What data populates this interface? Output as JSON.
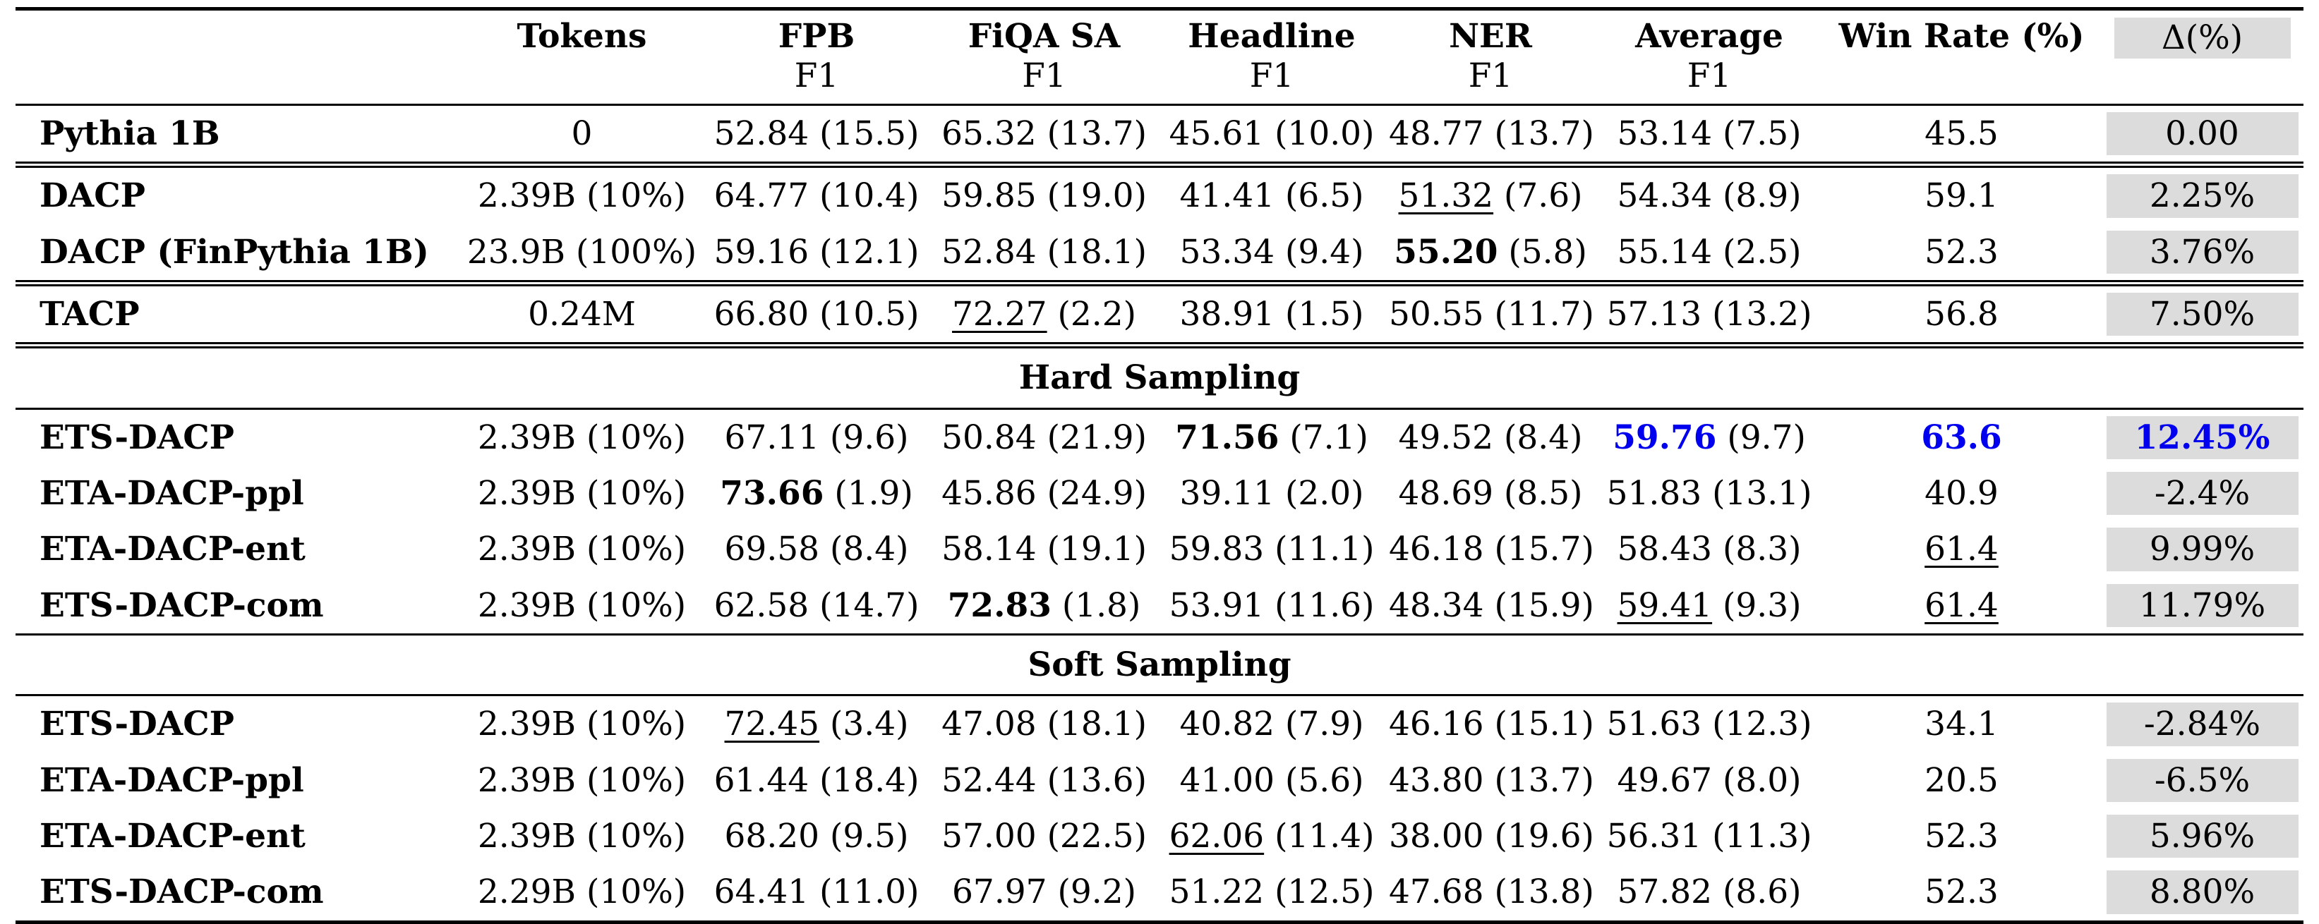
{
  "colors": {
    "accent_blue": "#0000EE",
    "shade_gray": "#DCDCDC",
    "rule_black": "#000000"
  },
  "header": {
    "cols": [
      {
        "key": "model",
        "label": "",
        "sub": ""
      },
      {
        "key": "tokens",
        "label": "Tokens",
        "sub": ""
      },
      {
        "key": "fpb",
        "label": "FPB",
        "sub": "F1"
      },
      {
        "key": "fiqa-sa",
        "label": "FiQA SA",
        "sub": "F1"
      },
      {
        "key": "headline",
        "label": "Headline",
        "sub": "F1"
      },
      {
        "key": "ner",
        "label": "NER",
        "sub": "F1"
      },
      {
        "key": "average",
        "label": "Average",
        "sub": "F1"
      },
      {
        "key": "win-rate",
        "label": "Win Rate (%)",
        "sub": ""
      },
      {
        "key": "delta",
        "label": "Δ(%)",
        "sub": "",
        "shaded": true,
        "plain": true
      }
    ]
  },
  "sections": [
    {
      "label": null,
      "rule_top": "none",
      "rows": [
        {
          "name": "Pythia 1B",
          "cells": [
            {
              "v": "0"
            },
            {
              "v": "52.84",
              "sd": "(15.5)"
            },
            {
              "v": "65.32",
              "sd": "(13.7)"
            },
            {
              "v": "45.61",
              "sd": "(10.0)"
            },
            {
              "v": "48.77",
              "sd": "(13.7)"
            },
            {
              "v": "53.14",
              "sd": "(7.5)"
            },
            {
              "v": "45.5"
            },
            {
              "v": "0.00"
            }
          ]
        }
      ]
    },
    {
      "label": null,
      "rule_top": "double",
      "rows": [
        {
          "name": "DACP",
          "cells": [
            {
              "v": "2.39B (10%)"
            },
            {
              "v": "64.77",
              "sd": "(10.4)"
            },
            {
              "v": "59.85",
              "sd": "(19.0)"
            },
            {
              "v": "41.41",
              "sd": "(6.5)"
            },
            {
              "v": "51.32",
              "sd": "(7.6)",
              "style": "underline"
            },
            {
              "v": "54.34",
              "sd": "(8.9)"
            },
            {
              "v": "59.1"
            },
            {
              "v": "2.25%"
            }
          ]
        },
        {
          "name": "DACP (FinPythia 1B)",
          "cells": [
            {
              "v": "23.9B (100%)"
            },
            {
              "v": "59.16",
              "sd": "(12.1)"
            },
            {
              "v": "52.84",
              "sd": "(18.1)"
            },
            {
              "v": "53.34",
              "sd": "(9.4)"
            },
            {
              "v": "55.20",
              "sd": "(5.8)",
              "style": "bold"
            },
            {
              "v": "55.14",
              "sd": "(2.5)"
            },
            {
              "v": "52.3"
            },
            {
              "v": "3.76%"
            }
          ]
        }
      ]
    },
    {
      "label": null,
      "rule_top": "double",
      "rows": [
        {
          "name": "TACP",
          "cells": [
            {
              "v": "0.24M"
            },
            {
              "v": "66.80",
              "sd": "(10.5)"
            },
            {
              "v": "72.27",
              "sd": "(2.2)",
              "style": "underline"
            },
            {
              "v": "38.91",
              "sd": "(1.5)"
            },
            {
              "v": "50.55",
              "sd": "(11.7)"
            },
            {
              "v": "57.13",
              "sd": "(13.2)"
            },
            {
              "v": "56.8"
            },
            {
              "v": "7.50%"
            }
          ]
        }
      ]
    },
    {
      "label": "Hard Sampling",
      "rule_top": "double",
      "rows": [
        {
          "name": "ETS-DACP",
          "cells": [
            {
              "v": "2.39B (10%)"
            },
            {
              "v": "67.11",
              "sd": "(9.6)"
            },
            {
              "v": "50.84",
              "sd": "(21.9)"
            },
            {
              "v": "71.56",
              "sd": "(7.1)",
              "style": "bold"
            },
            {
              "v": "49.52",
              "sd": "(8.4)"
            },
            {
              "v": "59.76",
              "sd": "(9.7)",
              "style": "blue"
            },
            {
              "v": "63.6",
              "style": "blue"
            },
            {
              "v": "12.45%",
              "style": "blue"
            }
          ]
        },
        {
          "name": "ETA-DACP-ppl",
          "cells": [
            {
              "v": "2.39B (10%)"
            },
            {
              "v": "73.66",
              "sd": "(1.9)",
              "style": "bold"
            },
            {
              "v": "45.86",
              "sd": "(24.9)"
            },
            {
              "v": "39.11",
              "sd": "(2.0)"
            },
            {
              "v": "48.69",
              "sd": "(8.5)"
            },
            {
              "v": "51.83",
              "sd": "(13.1)"
            },
            {
              "v": "40.9"
            },
            {
              "v": "-2.4%"
            }
          ]
        },
        {
          "name": "ETA-DACP-ent",
          "cells": [
            {
              "v": "2.39B (10%)"
            },
            {
              "v": "69.58",
              "sd": "(8.4)"
            },
            {
              "v": "58.14",
              "sd": "(19.1)"
            },
            {
              "v": "59.83",
              "sd": "(11.1)"
            },
            {
              "v": "46.18",
              "sd": "(15.7)"
            },
            {
              "v": "58.43",
              "sd": "(8.3)"
            },
            {
              "v": "61.4",
              "style": "underline"
            },
            {
              "v": "9.99%"
            }
          ]
        },
        {
          "name": "ETS-DACP-com",
          "cells": [
            {
              "v": "2.39B (10%)"
            },
            {
              "v": "62.58",
              "sd": "(14.7)"
            },
            {
              "v": "72.83",
              "sd": "(1.8)",
              "style": "bold"
            },
            {
              "v": "53.91",
              "sd": "(11.6)"
            },
            {
              "v": "48.34",
              "sd": "(15.9)"
            },
            {
              "v": "59.41",
              "sd": "(9.3)",
              "style": "underline"
            },
            {
              "v": "61.4",
              "style": "underline"
            },
            {
              "v": "11.79%"
            }
          ]
        }
      ]
    },
    {
      "label": "Soft Sampling",
      "rule_top": "single",
      "rows": [
        {
          "name": "ETS-DACP",
          "cells": [
            {
              "v": "2.39B (10%)"
            },
            {
              "v": "72.45",
              "sd": "(3.4)",
              "style": "underline"
            },
            {
              "v": "47.08",
              "sd": "(18.1)"
            },
            {
              "v": "40.82",
              "sd": "(7.9)"
            },
            {
              "v": "46.16",
              "sd": "(15.1)"
            },
            {
              "v": "51.63",
              "sd": "(12.3)"
            },
            {
              "v": "34.1"
            },
            {
              "v": "-2.84%"
            }
          ]
        },
        {
          "name": "ETA-DACP-ppl",
          "cells": [
            {
              "v": "2.39B (10%)"
            },
            {
              "v": "61.44",
              "sd": "(18.4)"
            },
            {
              "v": "52.44",
              "sd": "(13.6)"
            },
            {
              "v": "41.00",
              "sd": "(5.6)"
            },
            {
              "v": "43.80",
              "sd": "(13.7)"
            },
            {
              "v": "49.67",
              "sd": "(8.0)"
            },
            {
              "v": "20.5"
            },
            {
              "v": "-6.5%"
            }
          ]
        },
        {
          "name": "ETA-DACP-ent",
          "cells": [
            {
              "v": "2.39B (10%)"
            },
            {
              "v": "68.20",
              "sd": "(9.5)"
            },
            {
              "v": "57.00",
              "sd": "(22.5)"
            },
            {
              "v": "62.06",
              "sd": "(11.4)",
              "style": "underline"
            },
            {
              "v": "38.00",
              "sd": "(19.6)"
            },
            {
              "v": "56.31",
              "sd": "(11.3)"
            },
            {
              "v": "52.3"
            },
            {
              "v": "5.96%"
            }
          ]
        },
        {
          "name": "ETS-DACP-com",
          "cells": [
            {
              "v": "2.29B (10%)"
            },
            {
              "v": "64.41",
              "sd": "(11.0)"
            },
            {
              "v": "67.97",
              "sd": "(9.2)"
            },
            {
              "v": "51.22",
              "sd": "(12.5)"
            },
            {
              "v": "47.68",
              "sd": "(13.8)"
            },
            {
              "v": "57.82",
              "sd": "(8.6)"
            },
            {
              "v": "52.3"
            },
            {
              "v": "8.80%"
            }
          ]
        }
      ]
    }
  ]
}
